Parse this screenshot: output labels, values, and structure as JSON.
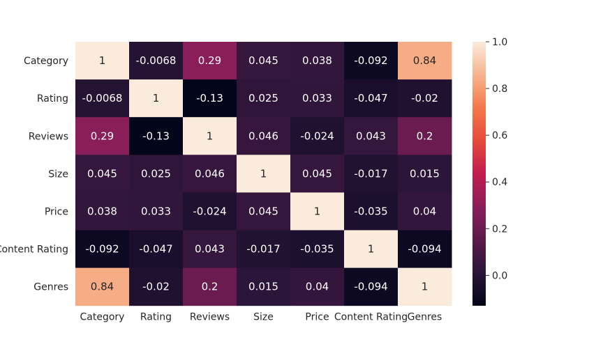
{
  "chart_data": {
    "type": "heatmap",
    "title": "",
    "xlabel": "",
    "ylabel": "",
    "x_categories": [
      "Category",
      "Rating",
      "Reviews",
      "Size",
      "Price",
      "Content Rating",
      "Genres"
    ],
    "y_categories": [
      "Category",
      "Rating",
      "Reviews",
      "Size",
      "Price",
      "Content Rating",
      "Genres"
    ],
    "values": [
      [
        1,
        -0.0068,
        0.29,
        0.045,
        0.038,
        -0.092,
        0.84
      ],
      [
        -0.0068,
        1,
        -0.13,
        0.025,
        0.033,
        -0.047,
        -0.02
      ],
      [
        0.29,
        -0.13,
        1,
        0.046,
        -0.024,
        0.043,
        0.2
      ],
      [
        0.045,
        0.025,
        0.046,
        1,
        0.045,
        -0.017,
        0.015
      ],
      [
        0.038,
        0.033,
        -0.024,
        0.045,
        1,
        -0.035,
        0.04
      ],
      [
        -0.092,
        -0.047,
        0.043,
        -0.017,
        -0.035,
        1,
        -0.094
      ],
      [
        0.84,
        -0.02,
        0.2,
        0.015,
        0.04,
        -0.094,
        1
      ]
    ],
    "value_labels": [
      [
        "1",
        "-0.0068",
        "0.29",
        "0.045",
        "0.038",
        "-0.092",
        "0.84"
      ],
      [
        "-0.0068",
        "1",
        "-0.13",
        "0.025",
        "0.033",
        "-0.047",
        "-0.02"
      ],
      [
        "0.29",
        "-0.13",
        "1",
        "0.046",
        "-0.024",
        "0.043",
        "0.2"
      ],
      [
        "0.045",
        "0.025",
        "0.046",
        "1",
        "0.045",
        "-0.017",
        "0.015"
      ],
      [
        "0.038",
        "0.033",
        "-0.024",
        "0.045",
        "1",
        "-0.035",
        "0.04"
      ],
      [
        "-0.092",
        "-0.047",
        "0.043",
        "-0.017",
        "-0.035",
        "1",
        "-0.094"
      ],
      [
        "0.84",
        "-0.02",
        "0.2",
        "0.015",
        "0.04",
        "-0.094",
        "1"
      ]
    ],
    "colorbar": {
      "vmin": -0.13,
      "vmax": 1.0,
      "ticks": [
        0.0,
        0.2,
        0.4,
        0.6,
        0.8,
        1.0
      ],
      "tick_labels": [
        "0.0",
        "0.2",
        "0.4",
        "0.6",
        "0.8",
        "1.0"
      ],
      "colormap": "rocket",
      "colormap_stops": [
        {
          "v": 0.0,
          "color": "#03051a"
        },
        {
          "v": 0.125,
          "color": "#2a1538"
        },
        {
          "v": 0.25,
          "color": "#5a1a4a"
        },
        {
          "v": 0.375,
          "color": "#8a1e5a"
        },
        {
          "v": 0.5,
          "color": "#c21d4f"
        },
        {
          "v": 0.625,
          "color": "#e64a3c"
        },
        {
          "v": 0.75,
          "color": "#f3794a"
        },
        {
          "v": 0.875,
          "color": "#f6b48e"
        },
        {
          "v": 1.0,
          "color": "#faebdd"
        }
      ]
    },
    "grid": false,
    "legend": "none"
  }
}
